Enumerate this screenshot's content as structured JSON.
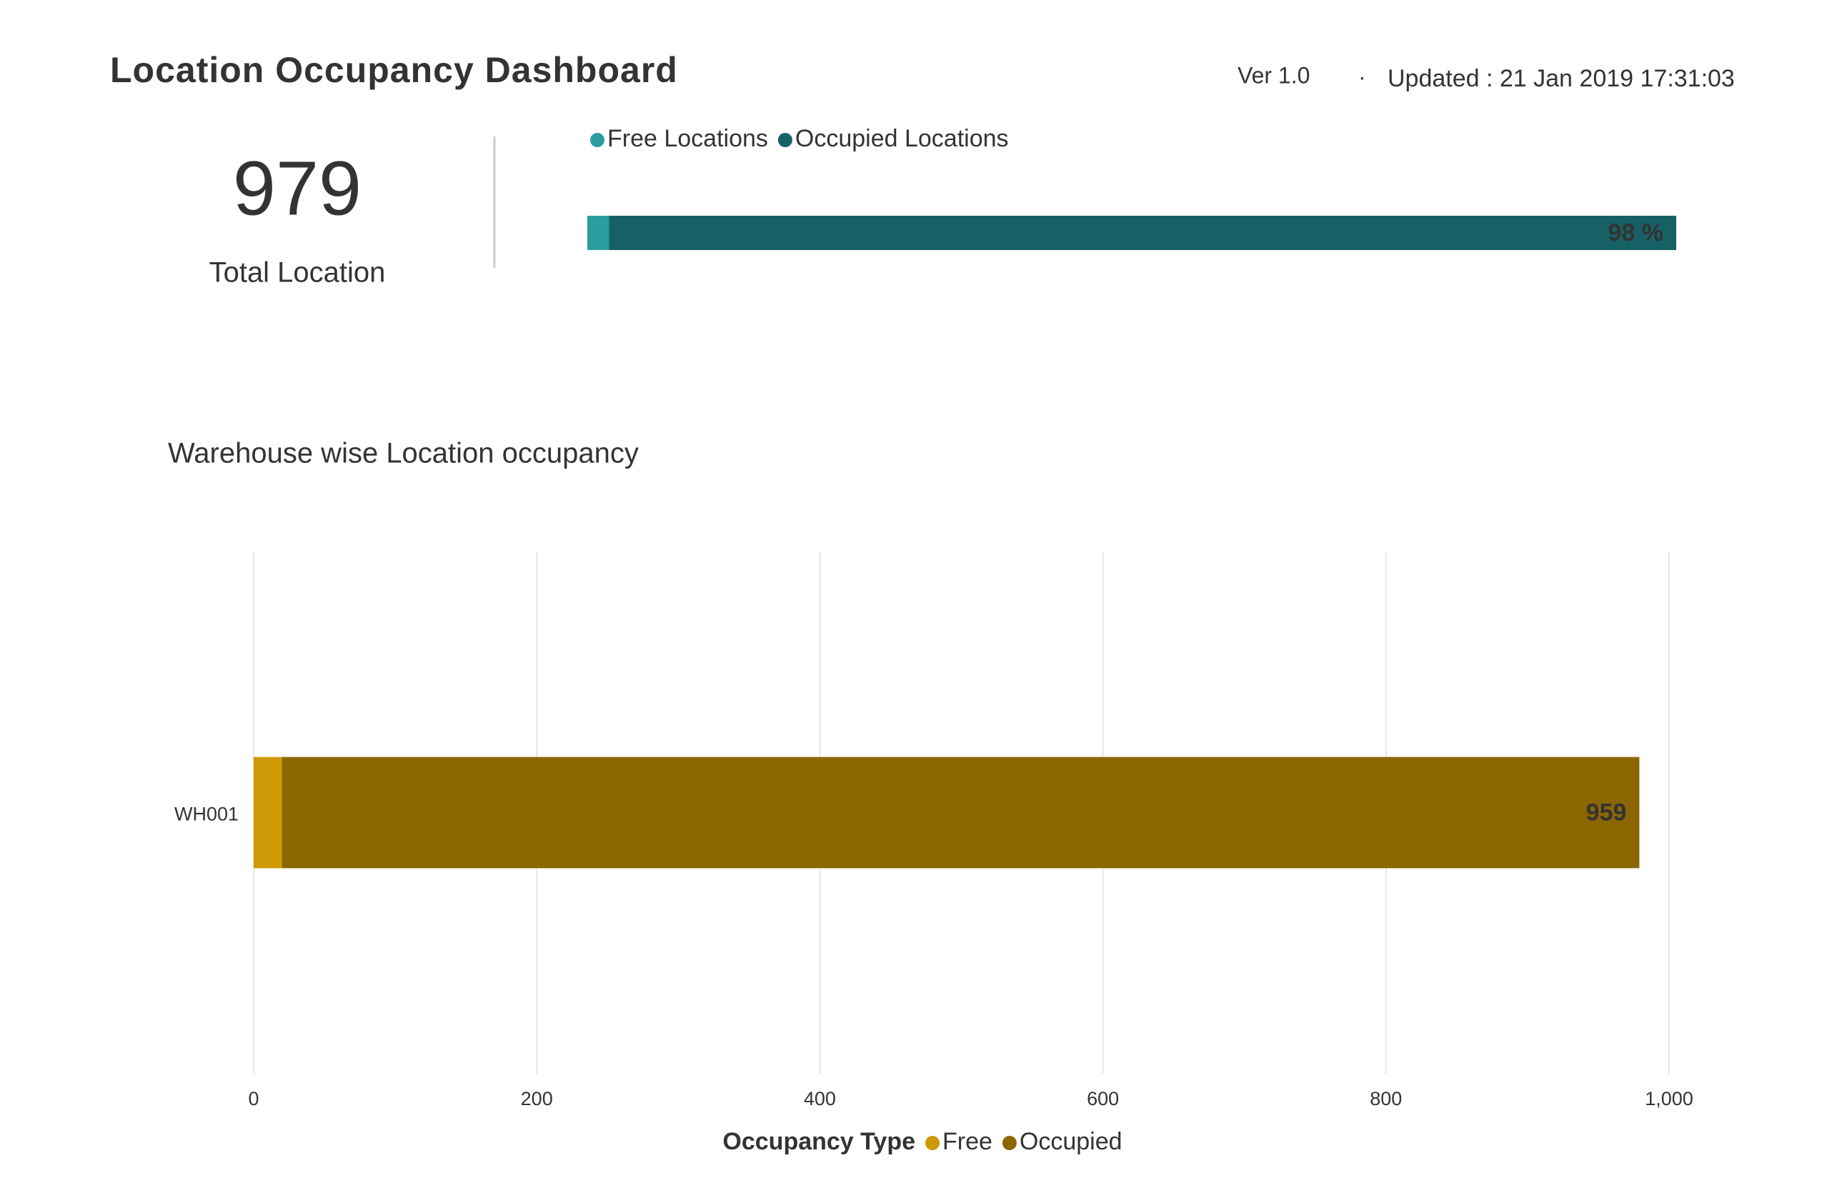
{
  "header": {
    "title": "Location Occupancy Dashboard",
    "version": "Ver 1.0",
    "separator": "·",
    "updated": "Updated : 21 Jan 2019 17:31:03"
  },
  "kpi": {
    "value": 979,
    "label": "Total Location"
  },
  "chart_data": [
    {
      "type": "bar",
      "orientation": "horizontal",
      "stacked": true,
      "categories": [
        null
      ],
      "series": [
        {
          "name": "Free Locations",
          "color": "#2a9d9f",
          "values": [
            2
          ]
        },
        {
          "name": "Occupied Locations",
          "color": "#176166",
          "values": [
            98
          ],
          "value_labels": [
            "98 %"
          ],
          "data_labels": true
        }
      ],
      "xlim": [
        0,
        100
      ]
    },
    {
      "type": "bar",
      "orientation": "horizontal",
      "stacked": true,
      "title": "Warehouse wise Location occupancy",
      "categories": [
        "WH001"
      ],
      "series": [
        {
          "name": "Free",
          "color": "#cc9a06",
          "values": [
            20
          ]
        },
        {
          "name": "Occupied",
          "color": "#8c6700",
          "values": [
            959
          ],
          "data_labels": true
        }
      ],
      "xlim": [
        0,
        1000
      ],
      "xticks": [
        0,
        200,
        400,
        600,
        800,
        {
          "value": 1000,
          "label": "1,000"
        }
      ],
      "grid": true,
      "legend_title": "Occupancy Type"
    }
  ]
}
